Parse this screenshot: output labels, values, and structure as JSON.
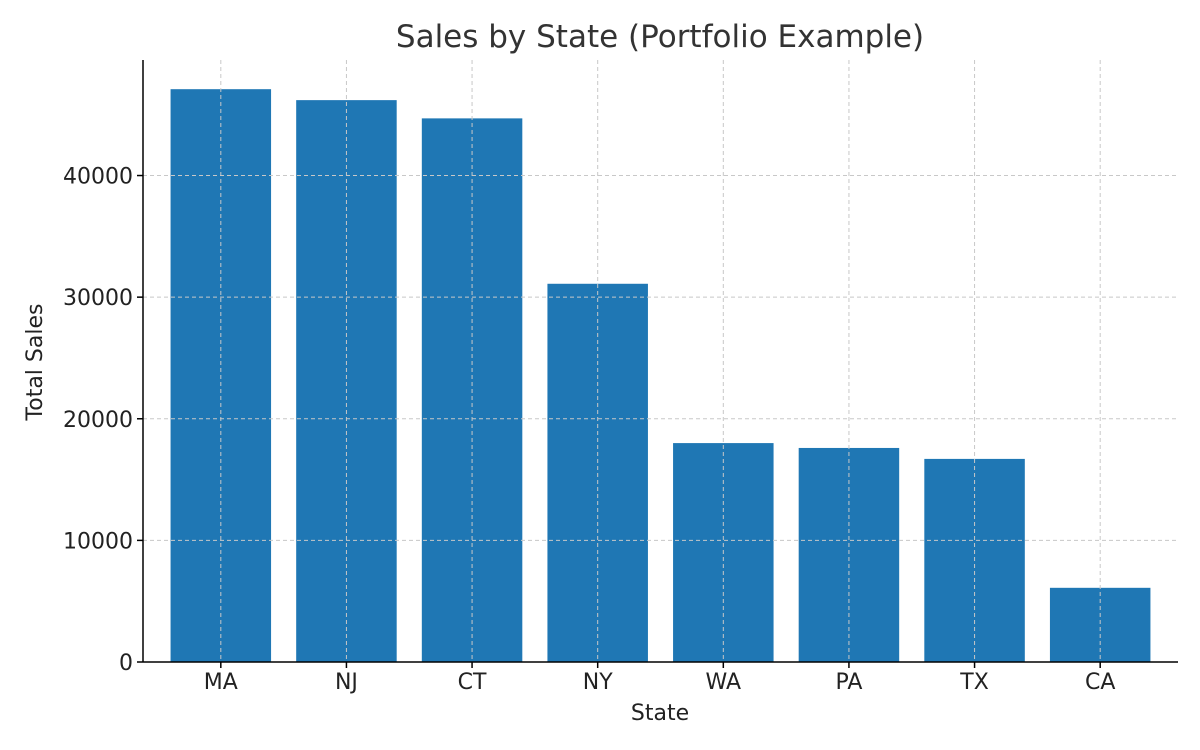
{
  "chart_data": {
    "type": "bar",
    "title": "Sales by State (Portfolio Example)",
    "xlabel": "State",
    "ylabel": "Total Sales",
    "categories": [
      "MA",
      "NJ",
      "CT",
      "NY",
      "WA",
      "PA",
      "TX",
      "CA"
    ],
    "values": [
      47100,
      46200,
      44700,
      31100,
      18000,
      17600,
      16700,
      6100
    ],
    "ylim": [
      0,
      49500
    ],
    "yticks": [
      0,
      10000,
      20000,
      30000,
      40000
    ],
    "ytick_labels": [
      "0",
      "10000",
      "20000",
      "30000",
      "40000"
    ],
    "grid": true,
    "bar_color": "#1f77b4"
  }
}
